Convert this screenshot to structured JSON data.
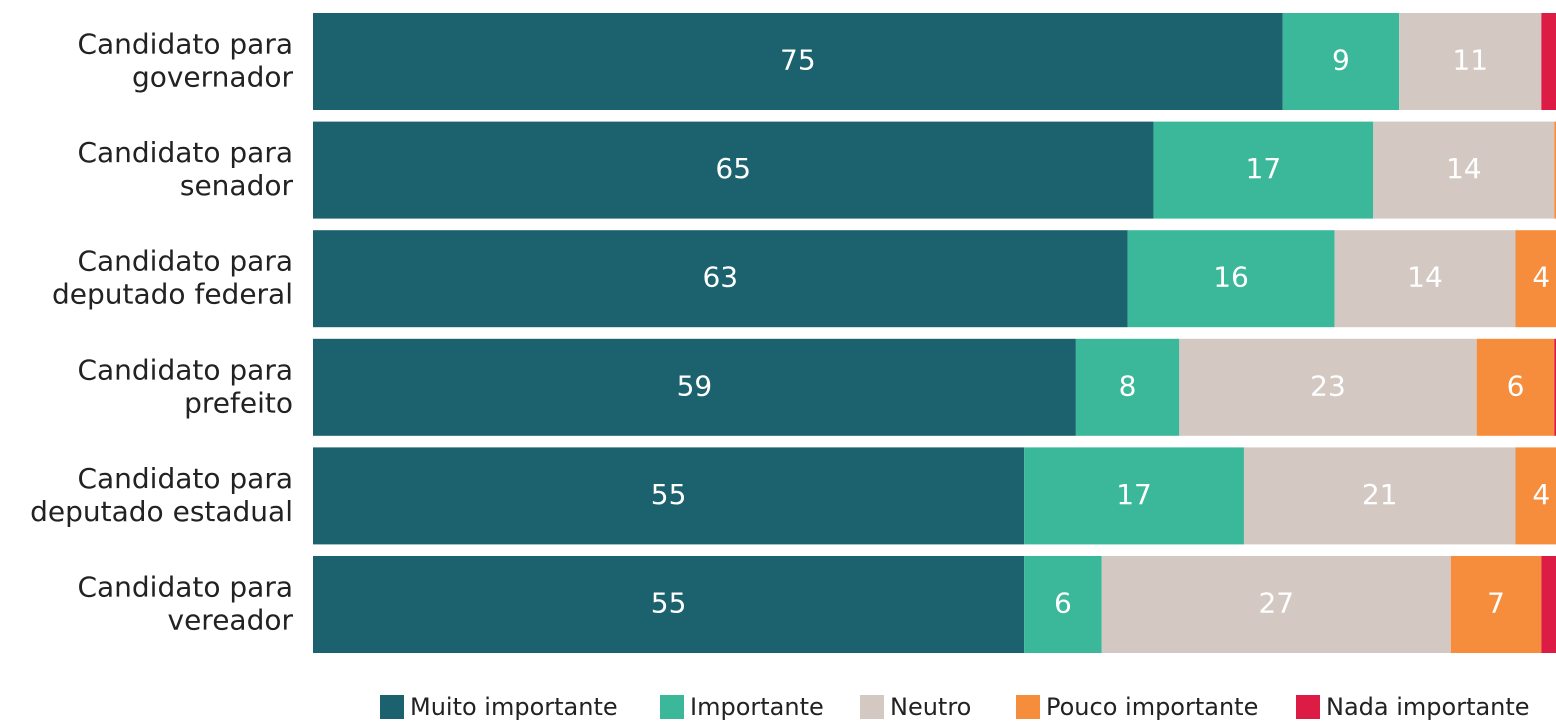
{
  "chart_data": {
    "type": "stacked-bar-horizontal",
    "categories": [
      [
        "Candidato para",
        "governador"
      ],
      [
        "Candidato para",
        "senador"
      ],
      [
        "Candidato para",
        "deputado federal"
      ],
      [
        "Candidato para",
        "prefeito"
      ],
      [
        "Candidato para",
        "deputado estadual"
      ],
      [
        "Candidato para",
        "vereador"
      ]
    ],
    "series": [
      {
        "name": "Muito importante",
        "color": "#1b626e",
        "values": [
          75,
          65,
          63,
          59,
          55,
          55
        ]
      },
      {
        "name": "Importante",
        "color": "#3bb89a",
        "values": [
          9,
          17,
          16,
          8,
          17,
          6
        ]
      },
      {
        "name": "Neutro",
        "color": "#d4c8c2",
        "values": [
          11,
          14,
          14,
          23,
          21,
          27
        ]
      },
      {
        "name": "Pouco importante",
        "color": "#f68d3d",
        "values": [
          0,
          4,
          4,
          6,
          4,
          7
        ]
      },
      {
        "name": "Nada importante",
        "color": "#dc1c45",
        "values": [
          5,
          0,
          3,
          4,
          3,
          6
        ]
      }
    ],
    "xlim": [
      0,
      100
    ],
    "legend": "bottom"
  }
}
